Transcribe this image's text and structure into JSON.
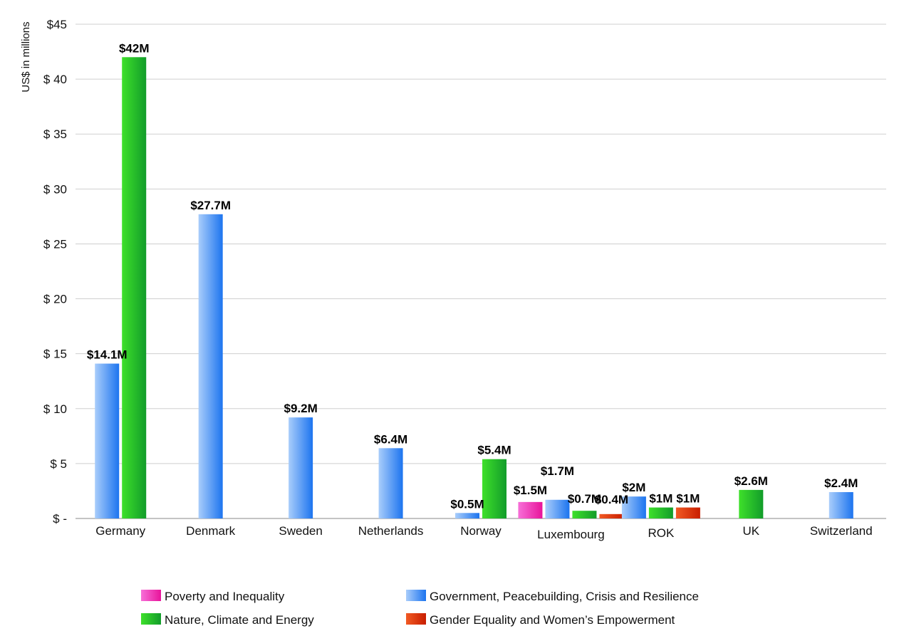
{
  "chart_data": {
    "type": "bar",
    "title": "",
    "xlabel": "",
    "ylabel": "US$ in millions",
    "ylim": [
      0,
      45
    ],
    "yticks": [
      0,
      5,
      10,
      15,
      20,
      25,
      30,
      35,
      40,
      45
    ],
    "ytick_labels": [
      "$ -",
      "$ 5",
      "$ 10",
      "$ 15",
      "$ 20",
      "$ 25",
      "$ 30",
      "$ 35",
      "$ 40",
      "$45"
    ],
    "grid": true,
    "legend_position": "bottom",
    "categories": [
      "Germany",
      "Denmark",
      "Sweden",
      "Netherlands",
      "Norway",
      "Luxembourg",
      "ROK",
      "UK",
      "Switzerland"
    ],
    "series": [
      {
        "name": "Poverty and Inequality",
        "color_light": "#f76fd8",
        "color_dark": "#e8149a",
        "values": [
          null,
          null,
          null,
          null,
          null,
          1.5,
          null,
          null,
          null
        ],
        "labels": [
          "",
          "",
          "",
          "",
          "",
          "$1.5M",
          "",
          "",
          ""
        ]
      },
      {
        "name": "Government, Peacebuilding, Crisis and Resilience",
        "color_light": "#a9cdfb",
        "color_dark": "#1c74ef",
        "values": [
          14.1,
          27.7,
          9.2,
          6.4,
          0.5,
          1.7,
          2.0,
          null,
          2.4
        ],
        "labels": [
          "$14.1M",
          "$27.7M",
          "$9.2M",
          "$6.4M",
          "$0.5M",
          "$1.7M",
          "$2M",
          "",
          "$2.4M"
        ]
      },
      {
        "name": "Nature, Climate and Energy",
        "color_light": "#3ee02a",
        "color_dark": "#129c2a",
        "values": [
          42,
          null,
          null,
          null,
          5.4,
          0.7,
          1.0,
          2.6,
          null
        ],
        "labels": [
          "$42M",
          "",
          "",
          "",
          "$5.4M",
          "$0.7M",
          "$1M",
          "$2.6M",
          ""
        ]
      },
      {
        "name": "Gender Equality and Women’s Empowerment",
        "color_light": "#f15a24",
        "color_dark": "#c81e00",
        "values": [
          null,
          null,
          null,
          null,
          null,
          0.4,
          1.0,
          null,
          null
        ],
        "labels": [
          "",
          "",
          "",
          "",
          "",
          "$0.4M",
          "$1M",
          "",
          ""
        ]
      }
    ],
    "legend": {
      "items": [
        {
          "label": "Poverty and Inequality",
          "series": 0
        },
        {
          "label": "Government, Peacebuilding, Crisis and Resilience",
          "series": 1
        },
        {
          "label": "Nature, Climate and Energy",
          "series": 2
        },
        {
          "label": "Gender Equality and Women’s Empowerment",
          "series": 3
        }
      ]
    }
  }
}
